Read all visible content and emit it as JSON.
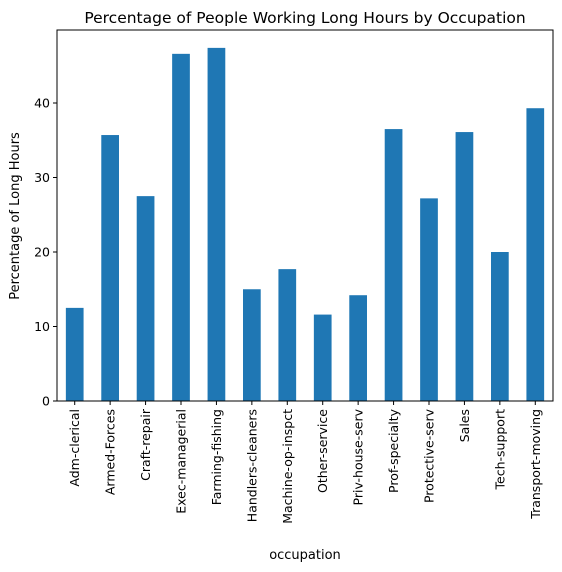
{
  "chart_data": {
    "type": "bar",
    "title": "Percentage of People Working Long Hours by Occupation",
    "xlabel": "occupation",
    "ylabel": "Percentage of Long Hours",
    "categories": [
      "Adm-clerical",
      "Armed-Forces",
      "Craft-repair",
      "Exec-managerial",
      "Farming-fishing",
      "Handlers-cleaners",
      "Machine-op-inspct",
      "Other-service",
      "Priv-house-serv",
      "Prof-specialty",
      "Protective-serv",
      "Sales",
      "Tech-support",
      "Transport-moving"
    ],
    "values": [
      12.5,
      35.7,
      27.5,
      46.6,
      47.4,
      15.0,
      17.7,
      11.6,
      14.2,
      36.5,
      27.2,
      36.1,
      20.0,
      39.3
    ],
    "yticks": [
      0,
      10,
      20,
      30,
      40
    ],
    "ylim": [
      0,
      49.8
    ],
    "bar_color": "#1f77b4",
    "grid": false,
    "legend": "none"
  }
}
